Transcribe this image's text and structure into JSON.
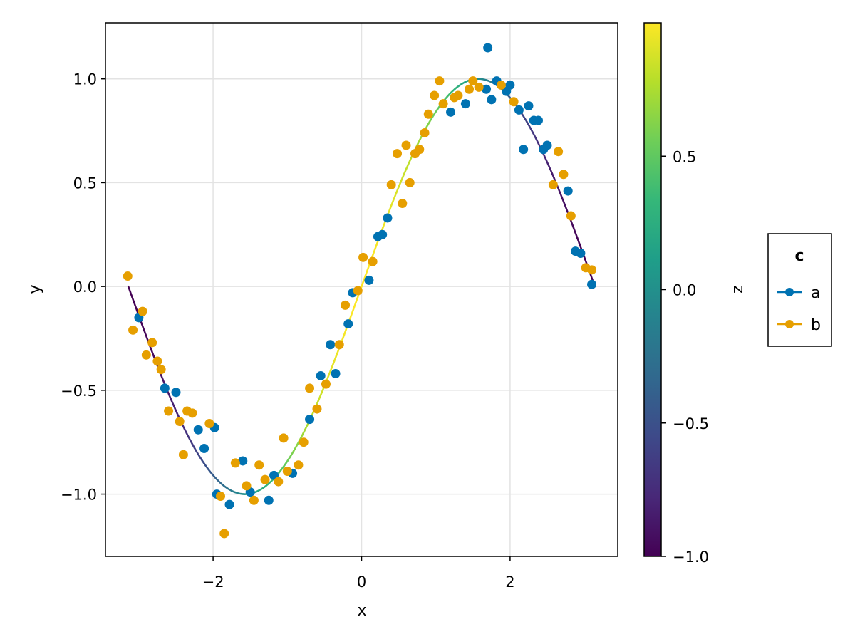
{
  "chart_data": {
    "type": "scatter",
    "title": "",
    "xlabel": "x",
    "ylabel": "y",
    "xlim": [
      -3.45,
      3.45
    ],
    "ylim": [
      -1.3,
      1.27
    ],
    "xticks": [
      -2,
      0,
      2
    ],
    "xtick_labels": [
      "−2",
      "0",
      "2"
    ],
    "yticks": [
      -1.0,
      -0.5,
      0.0,
      0.5,
      1.0
    ],
    "ytick_labels": [
      "−1.0",
      "−0.5",
      "0.0",
      "0.5",
      "1.0"
    ],
    "grid": true,
    "line": {
      "function": "sin(x)",
      "x_range": [
        -3.14159,
        3.14159
      ],
      "color_by": "cos(x)"
    },
    "colorbar": {
      "label": "z",
      "range": [
        -1.0,
        1.0
      ],
      "ticks": [
        -1.0,
        -0.5,
        0.0,
        0.5
      ],
      "tick_labels": [
        "−1.0",
        "−0.5",
        "0.0",
        "0.5"
      ],
      "colormap": "viridis",
      "stops": [
        "#440154",
        "#482878",
        "#3e4989",
        "#31688e",
        "#26828e",
        "#1f9e89",
        "#35b779",
        "#6ece58",
        "#b5de2b",
        "#fde725"
      ]
    },
    "legend": {
      "title": "c",
      "placement": "right",
      "entries": [
        {
          "label": "a",
          "color": "#0072b2"
        },
        {
          "label": "b",
          "color": "#e69f00"
        }
      ]
    },
    "series": [
      {
        "name": "a",
        "color": "#0072b2",
        "points": [
          [
            -3.0,
            -0.15
          ],
          [
            -2.65,
            -0.49
          ],
          [
            -2.5,
            -0.51
          ],
          [
            -2.2,
            -0.69
          ],
          [
            -2.12,
            -0.78
          ],
          [
            -1.98,
            -0.68
          ],
          [
            -1.95,
            -1.0
          ],
          [
            -1.78,
            -1.05
          ],
          [
            -1.6,
            -0.84
          ],
          [
            -1.5,
            -0.99
          ],
          [
            -1.25,
            -1.03
          ],
          [
            -1.18,
            -0.91
          ],
          [
            -0.93,
            -0.9
          ],
          [
            -0.7,
            -0.64
          ],
          [
            -0.55,
            -0.43
          ],
          [
            -0.42,
            -0.28
          ],
          [
            -0.35,
            -0.42
          ],
          [
            -0.18,
            -0.18
          ],
          [
            -0.12,
            -0.03
          ],
          [
            0.1,
            0.03
          ],
          [
            0.22,
            0.24
          ],
          [
            0.28,
            0.25
          ],
          [
            0.35,
            0.33
          ],
          [
            1.2,
            0.84
          ],
          [
            1.4,
            0.88
          ],
          [
            1.68,
            0.95
          ],
          [
            1.7,
            1.15
          ],
          [
            1.75,
            0.9
          ],
          [
            1.82,
            0.99
          ],
          [
            1.95,
            0.94
          ],
          [
            2.0,
            0.97
          ],
          [
            2.12,
            0.85
          ],
          [
            2.18,
            0.66
          ],
          [
            2.25,
            0.87
          ],
          [
            2.32,
            0.8
          ],
          [
            2.38,
            0.8
          ],
          [
            2.45,
            0.66
          ],
          [
            2.5,
            0.68
          ],
          [
            2.78,
            0.46
          ],
          [
            2.88,
            0.17
          ],
          [
            2.95,
            0.16
          ],
          [
            3.1,
            0.01
          ]
        ]
      },
      {
        "name": "b",
        "color": "#e69f00",
        "points": [
          [
            -3.15,
            0.05
          ],
          [
            -3.08,
            -0.21
          ],
          [
            -2.95,
            -0.12
          ],
          [
            -2.9,
            -0.33
          ],
          [
            -2.82,
            -0.27
          ],
          [
            -2.75,
            -0.36
          ],
          [
            -2.7,
            -0.4
          ],
          [
            -2.6,
            -0.6
          ],
          [
            -2.45,
            -0.65
          ],
          [
            -2.4,
            -0.81
          ],
          [
            -2.35,
            -0.6
          ],
          [
            -2.28,
            -0.61
          ],
          [
            -2.05,
            -0.66
          ],
          [
            -1.9,
            -1.01
          ],
          [
            -1.85,
            -1.19
          ],
          [
            -1.7,
            -0.85
          ],
          [
            -1.55,
            -0.96
          ],
          [
            -1.45,
            -1.03
          ],
          [
            -1.38,
            -0.86
          ],
          [
            -1.3,
            -0.93
          ],
          [
            -1.12,
            -0.94
          ],
          [
            -1.05,
            -0.73
          ],
          [
            -1.0,
            -0.89
          ],
          [
            -0.85,
            -0.86
          ],
          [
            -0.78,
            -0.75
          ],
          [
            -0.7,
            -0.49
          ],
          [
            -0.6,
            -0.59
          ],
          [
            -0.48,
            -0.47
          ],
          [
            -0.3,
            -0.28
          ],
          [
            -0.22,
            -0.09
          ],
          [
            -0.05,
            -0.02
          ],
          [
            0.02,
            0.14
          ],
          [
            0.15,
            0.12
          ],
          [
            0.4,
            0.49
          ],
          [
            0.48,
            0.64
          ],
          [
            0.55,
            0.4
          ],
          [
            0.6,
            0.68
          ],
          [
            0.65,
            0.5
          ],
          [
            0.72,
            0.64
          ],
          [
            0.78,
            0.66
          ],
          [
            0.85,
            0.74
          ],
          [
            0.9,
            0.83
          ],
          [
            0.98,
            0.92
          ],
          [
            1.05,
            0.99
          ],
          [
            1.1,
            0.88
          ],
          [
            1.25,
            0.91
          ],
          [
            1.3,
            0.92
          ],
          [
            1.45,
            0.95
          ],
          [
            1.5,
            0.99
          ],
          [
            1.58,
            0.96
          ],
          [
            1.88,
            0.97
          ],
          [
            2.05,
            0.89
          ],
          [
            2.58,
            0.49
          ],
          [
            2.65,
            0.65
          ],
          [
            2.72,
            0.54
          ],
          [
            2.82,
            0.34
          ],
          [
            3.02,
            0.09
          ],
          [
            3.1,
            0.08
          ]
        ]
      }
    ]
  }
}
